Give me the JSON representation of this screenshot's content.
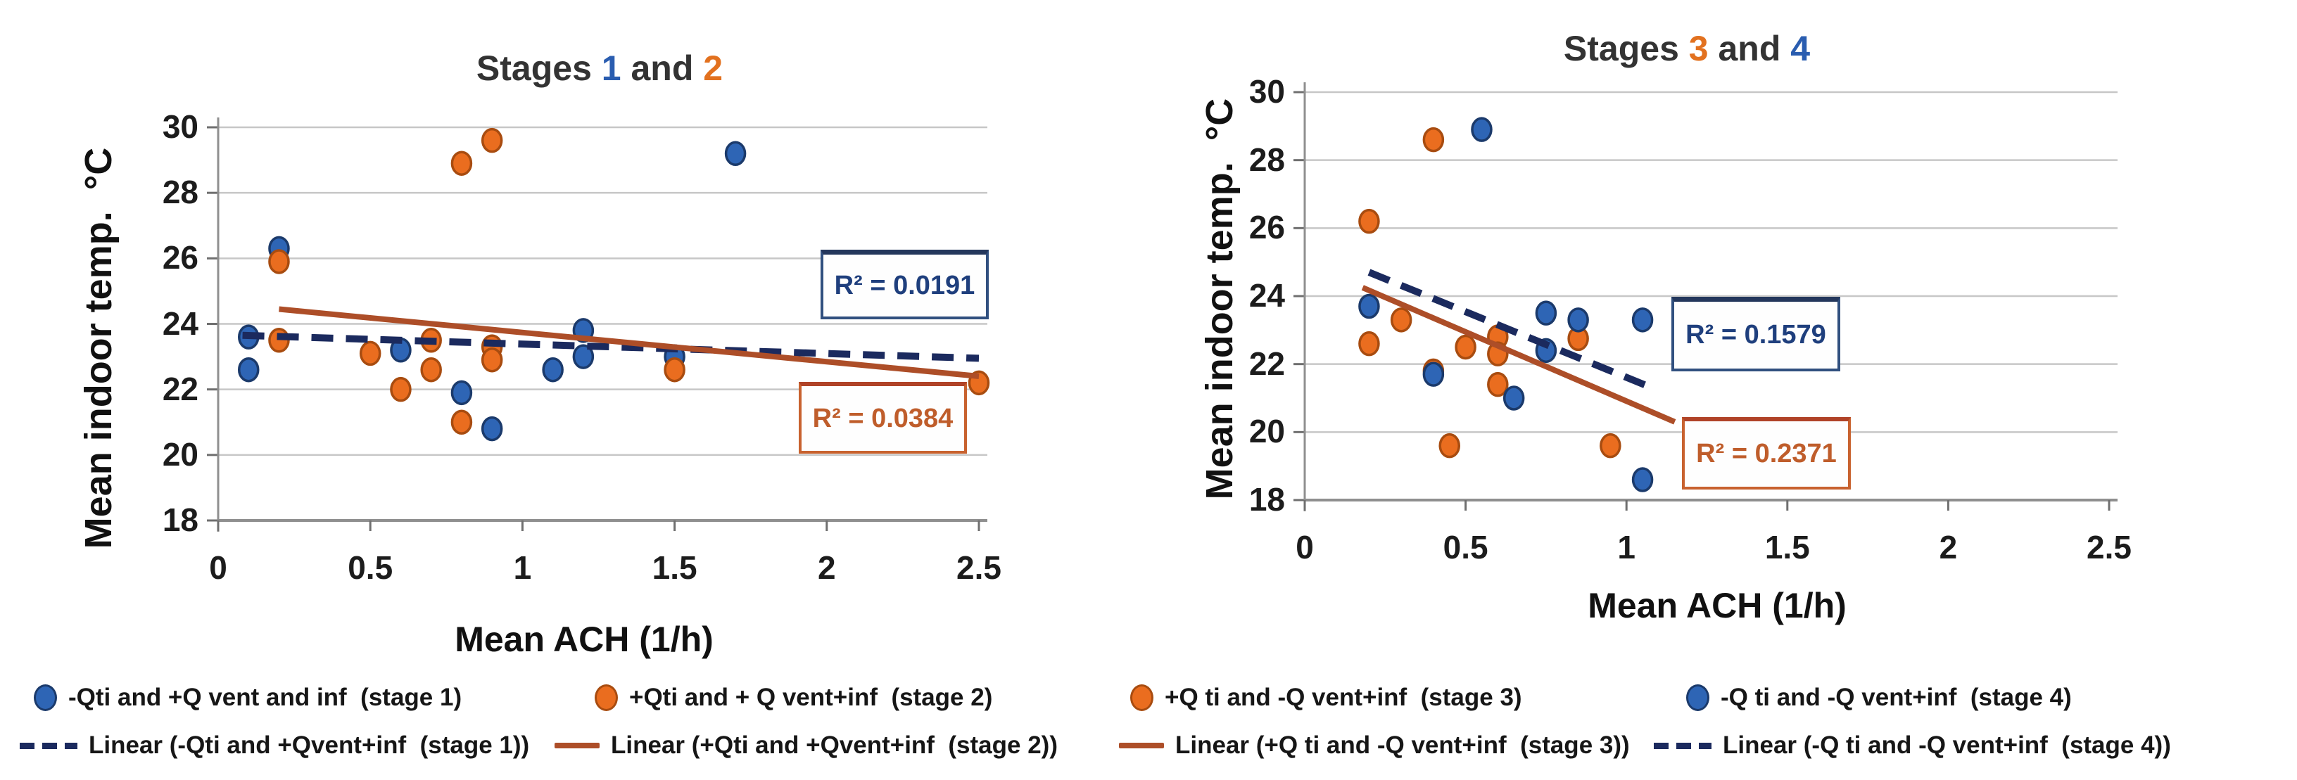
{
  "colors": {
    "stage_blue_fill": "#2e65b5",
    "stage_blue_edge": "#1b3a6b",
    "stage_orange_fill": "#ea6d1f",
    "stage_orange_edge": "#a84c10",
    "trend_navy": "#1b2a5e",
    "trend_brick": "#ad4e28",
    "gridline": "#c7c7c7",
    "axis_line": "#8f8f8f",
    "tick_mark": "#6f6f6f",
    "title_text": "#333333",
    "title_blue": "#2a5db0",
    "title_orange": "#e2711f",
    "r2_blue_text": "#1f3f7d",
    "r2_orange_text": "#bf5d2b"
  },
  "titles": {
    "left": {
      "pre": "Stages ",
      "n1": "1",
      "mid": " and ",
      "n2": "2"
    },
    "right": {
      "pre": "Stages ",
      "n1": "3",
      "mid": " and ",
      "n2": "4"
    }
  },
  "axis_labels": {
    "x": "Mean ACH (1/h)",
    "y": "Mean indoor temp.  °C"
  },
  "legend_left": {
    "s1": "-Qti and +Q vent and inf  (stage 1)",
    "s2": "+Qti and + Q vent+inf  (stage 2)",
    "lin1": "Linear (-Qti and +Qvent+inf  (stage 1))",
    "lin2": "Linear (+Qti and +Qvent+inf  (stage 2))"
  },
  "legend_right": {
    "s3": "+Q ti and -Q vent+inf  (stage 3)",
    "s4": "-Q ti and -Q vent+inf  (stage 4)",
    "lin3": "Linear (+Q ti and -Q vent+inf  (stage 3))",
    "lin4": "Linear (-Q ti and -Q vent+inf  (stage 4))"
  },
  "chart_data": [
    {
      "type": "scatter",
      "title": "Stages 1 and 2",
      "xlabel": "Mean ACH (1/h)",
      "ylabel": "Mean indoor temp. °C",
      "xlim": [
        0,
        2.5
      ],
      "ylim": [
        18,
        30
      ],
      "xticks": [
        0,
        0.5,
        1,
        1.5,
        2,
        2.5
      ],
      "xtick_labels": [
        "0",
        "0.5",
        "1",
        "1.5",
        "2",
        "2.5"
      ],
      "yticks": [
        18,
        20,
        22,
        24,
        26,
        28,
        30
      ],
      "ytick_labels": [
        "18",
        "20",
        "22",
        "24",
        "26",
        "28",
        "30"
      ],
      "grid": true,
      "legend_position": "bottom",
      "series": [
        {
          "id": "stage-1",
          "name": "-Qti and +Q vent and inf (stage 1)",
          "color": "#2e65b5",
          "edge": "#1b3a6b",
          "points": [
            [
              0.1,
              23.6
            ],
            [
              0.1,
              22.6
            ],
            [
              0.2,
              26.3
            ],
            [
              0.6,
              23.2
            ],
            [
              0.8,
              21.9
            ],
            [
              0.9,
              20.8
            ],
            [
              1.1,
              22.6
            ],
            [
              1.2,
              23.8
            ],
            [
              1.2,
              23.0
            ],
            [
              1.5,
              23.0
            ],
            [
              1.7,
              29.2
            ]
          ]
        },
        {
          "id": "stage-2",
          "name": "+Qti and + Q vent+inf (stage 2)",
          "color": "#ea6d1f",
          "edge": "#a84c10",
          "points": [
            [
              0.2,
              25.9
            ],
            [
              0.2,
              23.5
            ],
            [
              0.5,
              23.1
            ],
            [
              0.6,
              22.0
            ],
            [
              0.7,
              23.5
            ],
            [
              0.7,
              22.6
            ],
            [
              0.8,
              28.9
            ],
            [
              0.8,
              21.0
            ],
            [
              0.9,
              29.6
            ],
            [
              0.9,
              23.3
            ],
            [
              0.9,
              22.9
            ],
            [
              1.5,
              22.6
            ],
            [
              2.5,
              22.2
            ]
          ]
        }
      ],
      "trendlines": [
        {
          "id": "linear-stage-1",
          "name": "Linear (-Qti and +Qvent+inf (stage 1))",
          "style": "dashed",
          "color": "#1b2a5e",
          "x1": 0.08,
          "y1": 23.65,
          "x2": 2.5,
          "y2": 22.95,
          "r2": 0.0191,
          "r2_label": "R² = 0.0191"
        },
        {
          "id": "linear-stage-2",
          "name": "Linear (+Qti and +Qvent+inf (stage 2))",
          "style": "solid",
          "color": "#ad4e28",
          "x1": 0.2,
          "y1": 24.45,
          "x2": 2.5,
          "y2": 22.4,
          "r2": 0.0384,
          "r2_label": "R² = 0.0384"
        }
      ]
    },
    {
      "type": "scatter",
      "title": "Stages 3 and 4",
      "xlabel": "Mean ACH (1/h)",
      "ylabel": "Mean indoor temp. °C",
      "xlim": [
        0,
        2.5
      ],
      "ylim": [
        18,
        30
      ],
      "xticks": [
        0,
        0.5,
        1,
        1.5,
        2,
        2.5
      ],
      "xtick_labels": [
        "0",
        "0.5",
        "1",
        "1.5",
        "2",
        "2.5"
      ],
      "yticks": [
        18,
        20,
        22,
        24,
        26,
        28,
        30
      ],
      "ytick_labels": [
        "18",
        "20",
        "22",
        "24",
        "26",
        "28",
        "30"
      ],
      "grid": true,
      "legend_position": "bottom",
      "series": [
        {
          "id": "stage-3",
          "name": "+Q ti and -Q vent+inf (stage 3)",
          "color": "#ea6d1f",
          "edge": "#a84c10",
          "points": [
            [
              0.2,
              26.2
            ],
            [
              0.4,
              28.6
            ],
            [
              0.3,
              23.3
            ],
            [
              0.2,
              22.6
            ],
            [
              0.4,
              21.8
            ],
            [
              0.5,
              22.5
            ],
            [
              0.6,
              22.8
            ],
            [
              0.6,
              22.3
            ],
            [
              0.6,
              21.4
            ],
            [
              0.45,
              19.6
            ],
            [
              0.85,
              22.75
            ],
            [
              0.95,
              19.6
            ]
          ]
        },
        {
          "id": "stage-4",
          "name": "-Q ti and -Q vent+inf (stage 4)",
          "color": "#2e65b5",
          "edge": "#1b3a6b",
          "points": [
            [
              0.2,
              23.7
            ],
            [
              0.55,
              28.9
            ],
            [
              0.4,
              21.7
            ],
            [
              0.65,
              21.0
            ],
            [
              0.75,
              23.5
            ],
            [
              0.75,
              22.4
            ],
            [
              0.85,
              23.3
            ],
            [
              1.05,
              23.3
            ],
            [
              1.05,
              18.6
            ]
          ]
        }
      ],
      "trendlines": [
        {
          "id": "linear-stage-4",
          "name": "Linear (-Q ti and -Q vent+inf (stage 4))",
          "style": "dashed",
          "color": "#1b2a5e",
          "x1": 0.2,
          "y1": 24.7,
          "x2": 1.08,
          "y2": 21.3,
          "r2": 0.1579,
          "r2_label": "R² = 0.1579"
        },
        {
          "id": "linear-stage-3",
          "name": "Linear (+Q ti and -Q vent+inf (stage 3))",
          "style": "solid",
          "color": "#ad4e28",
          "x1": 0.18,
          "y1": 24.25,
          "x2": 1.15,
          "y2": 20.3,
          "r2": 0.2371,
          "r2_label": "R² = 0.2371"
        }
      ]
    }
  ]
}
